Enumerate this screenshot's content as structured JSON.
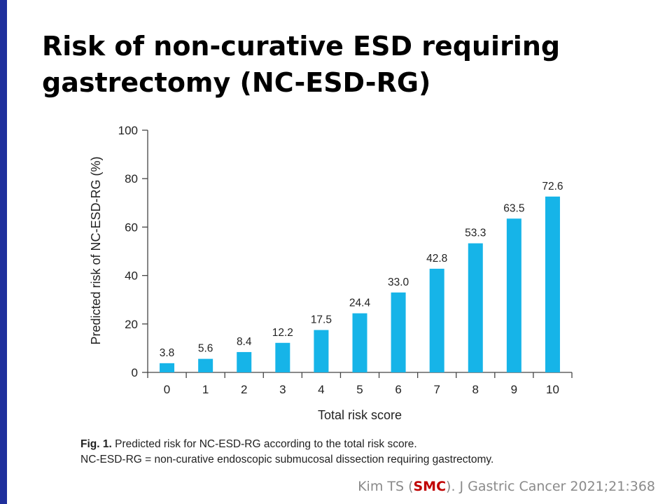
{
  "slide": {
    "title_line1": "Risk of non-curative ESD requiring",
    "title_line2": "gastrectomy (NC-ESD-RG)"
  },
  "chart_data": {
    "type": "bar",
    "title": "",
    "xlabel": "Total risk score",
    "ylabel": "Predicted risk of NC-ESD-RG (%)",
    "categories": [
      "0",
      "1",
      "2",
      "3",
      "4",
      "5",
      "6",
      "7",
      "8",
      "9",
      "10"
    ],
    "values": [
      3.8,
      5.6,
      8.4,
      12.2,
      17.5,
      24.4,
      33.0,
      42.8,
      53.3,
      63.5,
      72.6
    ],
    "value_labels": [
      "3.8",
      "5.6",
      "8.4",
      "12.2",
      "17.5",
      "24.4",
      "33.0",
      "42.8",
      "53.3",
      "63.5",
      "72.6"
    ],
    "ylim": [
      0,
      100
    ],
    "yticks": [
      "0",
      "20",
      "40",
      "60",
      "80",
      "100"
    ],
    "grid": false,
    "bar_color": "#16b4e8"
  },
  "caption": {
    "fig_label": "Fig. 1.",
    "line1": " Predicted risk for NC-ESD-RG according to the total risk score.",
    "line2": "NC-ESD-RG = non-curative endoscopic submucosal dissection requiring gastrectomy."
  },
  "citation": {
    "prefix": "Kim TS (",
    "highlight": "SMC",
    "suffix": "). J Gastric Cancer 2021;21:368",
    "highlight_color": "#c00000"
  }
}
